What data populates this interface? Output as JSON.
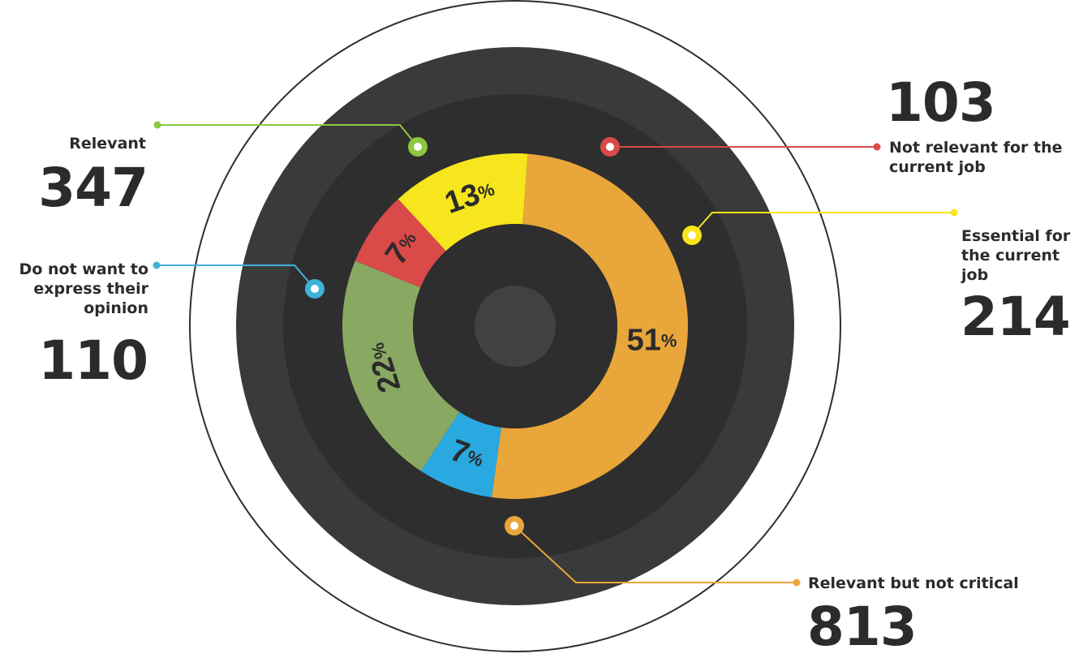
{
  "chart_data": {
    "type": "pie",
    "variant": "donut",
    "series": [
      {
        "key": "relevant",
        "label": "Relevant",
        "count": "347",
        "percent": 22,
        "percent_label": "22",
        "color": "#89a862"
      },
      {
        "key": "not_relevant",
        "label": "Not relevant for the current job",
        "count": "103",
        "percent": 7,
        "percent_label": "7",
        "color": "#d94a48"
      },
      {
        "key": "essential",
        "label": "Essential for the current job",
        "count": "214",
        "percent": 13,
        "percent_label": "13",
        "color": "#f7e51d"
      },
      {
        "key": "relevant_not_critical",
        "label": "Relevant but not critical",
        "count": "813",
        "percent": 51,
        "percent_label": "51",
        "color": "#e9a63a"
      },
      {
        "key": "no_opinion",
        "label": "Do not want to express their opinion",
        "count": "110",
        "percent": 7,
        "percent_label": "7",
        "color": "#29a9e0"
      }
    ],
    "percent_sign": "%"
  },
  "labels": {
    "relevant": {
      "text": "Relevant",
      "count": "347"
    },
    "no_opinion": {
      "line1": "Do not want to",
      "line2": "express their",
      "line3": "opinion",
      "count": "110"
    },
    "not_relevant": {
      "count": "103",
      "line1": "Not relevant for the",
      "line2": "current job"
    },
    "essential": {
      "line1": "Essential for",
      "line2": "the current",
      "line3": "job",
      "count": "214"
    },
    "relevant_not_critical": {
      "text": "Relevant but not critical",
      "count": "813"
    }
  },
  "colors": {
    "outer_ring": "#3a3a3a",
    "inner_dark": "#2e2e2e",
    "center_dot": "#414141",
    "text": "#2b2b2b"
  }
}
